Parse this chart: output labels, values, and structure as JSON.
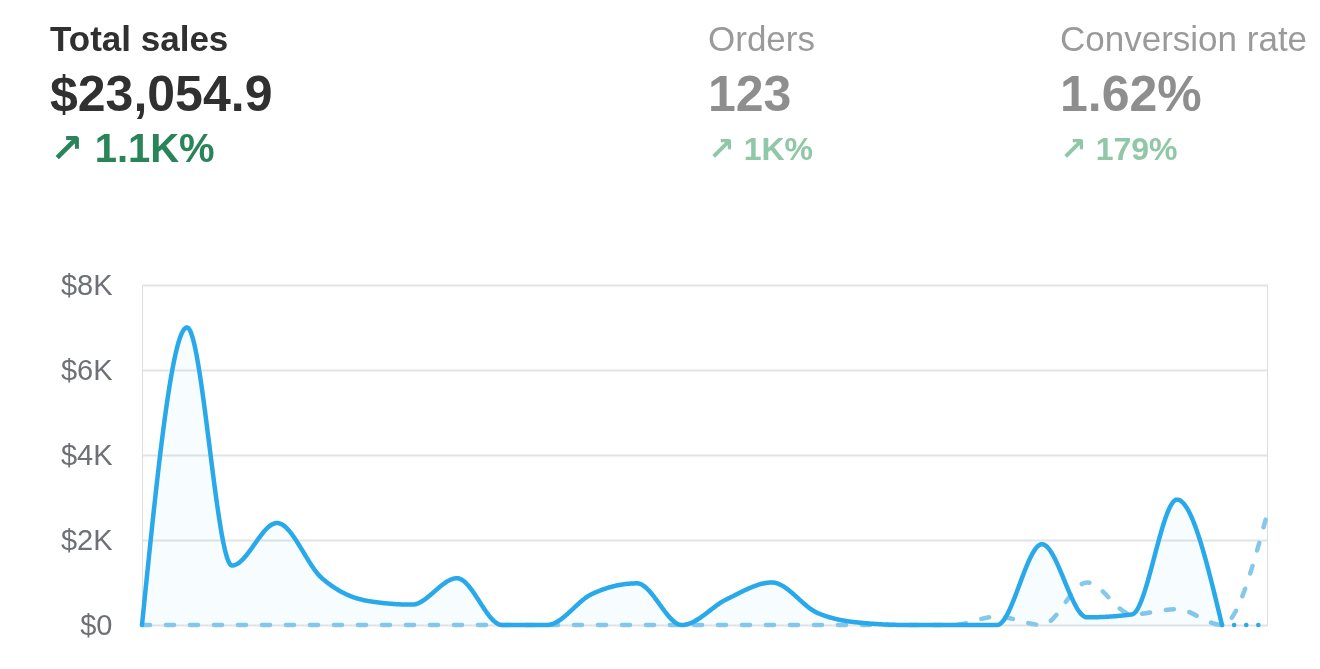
{
  "chart_data": [
    {
      "type": "other",
      "title": "Total sales",
      "annotations": [
        "$23,054.9",
        "↗ 1.1K%"
      ],
      "colors": [
        "#303030",
        "#303030",
        "#29845a"
      ]
    },
    {
      "type": "other",
      "title": "Orders",
      "annotations": [
        "123",
        "↗ 1K%"
      ],
      "colors": [
        "#9a9a9a",
        "#8e8e8e",
        "#8fc7a7"
      ]
    },
    {
      "type": "other",
      "title": "Conversion rate",
      "annotations": [
        "1.62%",
        "↗ 179%"
      ],
      "colors": [
        "#9a9a9a",
        "#8e8e8e",
        "#8fc7a7"
      ]
    },
    {
      "type": "line",
      "categories": [
        null,
        null,
        null,
        null,
        null,
        null,
        null,
        null,
        null,
        null,
        null,
        null,
        null,
        null,
        null,
        null,
        null,
        null,
        null,
        null,
        null,
        null,
        null,
        null,
        null,
        null
      ],
      "series": [
        {
          "type": "line",
          "line_style": "dashed",
          "color": "#86c8ec",
          "values": [
            0,
            0,
            0,
            0,
            0,
            0,
            0,
            0,
            0,
            0,
            0,
            0,
            0,
            0,
            0,
            0,
            0,
            0,
            0,
            200,
            0,
            1000,
            250,
            370,
            0,
            2600
          ]
        },
        {
          "type": "area",
          "line_style": "solid",
          "color": "#29a9ea",
          "values": [
            0,
            7000,
            1400,
            2400,
            1100,
            570,
            480,
            1100,
            0,
            0,
            730,
            980,
            0,
            610,
            1000,
            290,
            50,
            0,
            0,
            0,
            1900,
            180,
            250,
            2950,
            0,
            null
          ]
        },
        {
          "type": "line",
          "line_style": "dotted",
          "color": "#29a9ea",
          "values": [
            null,
            null,
            null,
            null,
            null,
            null,
            null,
            null,
            null,
            null,
            null,
            null,
            null,
            null,
            null,
            null,
            null,
            null,
            null,
            null,
            null,
            null,
            null,
            null,
            0,
            0
          ]
        }
      ],
      "ylim": [
        0,
        8000
      ],
      "yticks": [
        {
          "value": 0,
          "label": "$0"
        },
        {
          "value": 2000,
          "label": "$2K"
        },
        {
          "value": 4000,
          "label": "$4K"
        },
        {
          "value": 6000,
          "label": "$6K"
        },
        {
          "value": 8000,
          "label": "$8K"
        }
      ],
      "grid": "y"
    }
  ]
}
